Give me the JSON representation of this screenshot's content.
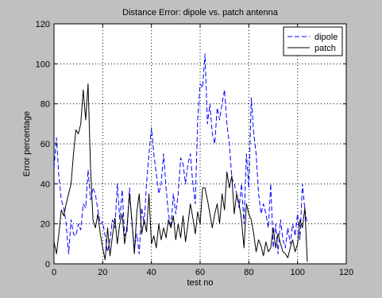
{
  "chart_data": {
    "type": "line",
    "title": "Distance Error: dipole vs. patch antenna",
    "xlabel": "test no",
    "ylabel": "Error percentage",
    "xlim": [
      0,
      120
    ],
    "ylim": [
      0,
      120
    ],
    "xticks": [
      0,
      20,
      40,
      60,
      80,
      100,
      120
    ],
    "yticks": [
      0,
      20,
      40,
      60,
      80,
      100,
      120
    ],
    "grid": true,
    "legend_position": "top-right",
    "series": [
      {
        "name": "dipole",
        "color": "#0000ff",
        "dash": "dashed",
        "values": [
          [
            0,
            48
          ],
          [
            1,
            63
          ],
          [
            2,
            44
          ],
          [
            3,
            32
          ],
          [
            4,
            28
          ],
          [
            5,
            20
          ],
          [
            6,
            5
          ],
          [
            7,
            22
          ],
          [
            8,
            15
          ],
          [
            9,
            14
          ],
          [
            10,
            20
          ],
          [
            11,
            17
          ],
          [
            12,
            30
          ],
          [
            13,
            28
          ],
          [
            14,
            47
          ],
          [
            15,
            32
          ],
          [
            16,
            38
          ],
          [
            17,
            35
          ],
          [
            18,
            27
          ],
          [
            19,
            20
          ],
          [
            20,
            21
          ],
          [
            21,
            14
          ],
          [
            22,
            6
          ],
          [
            23,
            12
          ],
          [
            24,
            22
          ],
          [
            25,
            18
          ],
          [
            26,
            40
          ],
          [
            27,
            22
          ],
          [
            28,
            37
          ],
          [
            29,
            14
          ],
          [
            30,
            16
          ],
          [
            31,
            38
          ],
          [
            32,
            20
          ],
          [
            33,
            8
          ],
          [
            34,
            15
          ],
          [
            35,
            5
          ],
          [
            36,
            28
          ],
          [
            37,
            20
          ],
          [
            38,
            40
          ],
          [
            39,
            55
          ],
          [
            40,
            68
          ],
          [
            41,
            55
          ],
          [
            42,
            45
          ],
          [
            43,
            35
          ],
          [
            44,
            40
          ],
          [
            45,
            55
          ],
          [
            46,
            38
          ],
          [
            47,
            25
          ],
          [
            48,
            18
          ],
          [
            49,
            35
          ],
          [
            50,
            25
          ],
          [
            51,
            35
          ],
          [
            52,
            53
          ],
          [
            53,
            50
          ],
          [
            54,
            40
          ],
          [
            55,
            50
          ],
          [
            56,
            55
          ],
          [
            57,
            40
          ],
          [
            58,
            30
          ],
          [
            59,
            72
          ],
          [
            60,
            90
          ],
          [
            61,
            88
          ],
          [
            62,
            105
          ],
          [
            63,
            70
          ],
          [
            64,
            80
          ],
          [
            65,
            65
          ],
          [
            66,
            60
          ],
          [
            67,
            78
          ],
          [
            68,
            72
          ],
          [
            69,
            80
          ],
          [
            70,
            87
          ],
          [
            71,
            70
          ],
          [
            72,
            60
          ],
          [
            73,
            43
          ],
          [
            74,
            40
          ],
          [
            75,
            35
          ],
          [
            76,
            28
          ],
          [
            77,
            40
          ],
          [
            78,
            20
          ],
          [
            79,
            55
          ],
          [
            80,
            38
          ],
          [
            81,
            83
          ],
          [
            82,
            65
          ],
          [
            83,
            55
          ],
          [
            84,
            35
          ],
          [
            85,
            25
          ],
          [
            86,
            30
          ],
          [
            87,
            25
          ],
          [
            88,
            18
          ],
          [
            89,
            40
          ],
          [
            90,
            8
          ],
          [
            91,
            20
          ],
          [
            92,
            5
          ],
          [
            93,
            22
          ],
          [
            94,
            12
          ],
          [
            95,
            8
          ],
          [
            96,
            18
          ],
          [
            97,
            10
          ],
          [
            98,
            20
          ],
          [
            99,
            14
          ],
          [
            100,
            25
          ],
          [
            101,
            12
          ],
          [
            102,
            40
          ],
          [
            103,
            27
          ],
          [
            104,
            20
          ]
        ]
      },
      {
        "name": "patch",
        "color": "#000000",
        "dash": "solid",
        "values": [
          [
            0,
            11
          ],
          [
            1,
            5
          ],
          [
            2,
            15
          ],
          [
            3,
            27
          ],
          [
            4,
            24
          ],
          [
            5,
            30
          ],
          [
            6,
            35
          ],
          [
            7,
            40
          ],
          [
            8,
            55
          ],
          [
            9,
            67
          ],
          [
            10,
            65
          ],
          [
            11,
            70
          ],
          [
            12,
            87
          ],
          [
            13,
            72
          ],
          [
            14,
            90
          ],
          [
            15,
            48
          ],
          [
            16,
            22
          ],
          [
            17,
            18
          ],
          [
            18,
            25
          ],
          [
            19,
            15
          ],
          [
            20,
            8
          ],
          [
            21,
            2
          ],
          [
            22,
            18
          ],
          [
            23,
            4
          ],
          [
            24,
            14
          ],
          [
            25,
            23
          ],
          [
            26,
            10
          ],
          [
            27,
            20
          ],
          [
            28,
            25
          ],
          [
            29,
            10
          ],
          [
            30,
            19
          ],
          [
            31,
            35
          ],
          [
            32,
            22
          ],
          [
            33,
            5
          ],
          [
            34,
            26
          ],
          [
            35,
            35
          ],
          [
            36,
            15
          ],
          [
            37,
            22
          ],
          [
            38,
            16
          ],
          [
            39,
            35
          ],
          [
            40,
            10
          ],
          [
            41,
            14
          ],
          [
            42,
            8
          ],
          [
            43,
            20
          ],
          [
            44,
            12
          ],
          [
            45,
            18
          ],
          [
            46,
            13
          ],
          [
            47,
            22
          ],
          [
            48,
            18
          ],
          [
            49,
            24
          ],
          [
            50,
            12
          ],
          [
            51,
            20
          ],
          [
            52,
            13
          ],
          [
            53,
            24
          ],
          [
            54,
            11
          ],
          [
            55,
            20
          ],
          [
            56,
            30
          ],
          [
            57,
            23
          ],
          [
            58,
            15
          ],
          [
            59,
            26
          ],
          [
            60,
            20
          ],
          [
            61,
            38
          ],
          [
            62,
            38
          ],
          [
            63,
            32
          ],
          [
            64,
            25
          ],
          [
            65,
            18
          ],
          [
            66,
            25
          ],
          [
            67,
            30
          ],
          [
            68,
            20
          ],
          [
            69,
            35
          ],
          [
            70,
            27
          ],
          [
            71,
            46
          ],
          [
            72,
            38
          ],
          [
            73,
            44
          ],
          [
            74,
            25
          ],
          [
            75,
            35
          ],
          [
            76,
            30
          ],
          [
            77,
            22
          ],
          [
            78,
            8
          ],
          [
            79,
            30
          ],
          [
            80,
            25
          ],
          [
            81,
            22
          ],
          [
            82,
            15
          ],
          [
            83,
            6
          ],
          [
            84,
            12
          ],
          [
            85,
            9
          ],
          [
            86,
            4
          ],
          [
            87,
            11
          ],
          [
            88,
            6
          ],
          [
            89,
            8
          ],
          [
            90,
            18
          ],
          [
            91,
            8
          ],
          [
            92,
            15
          ],
          [
            93,
            10
          ],
          [
            94,
            6
          ],
          [
            95,
            5
          ],
          [
            96,
            3
          ],
          [
            97,
            8
          ],
          [
            98,
            12
          ],
          [
            99,
            6
          ],
          [
            100,
            10
          ],
          [
            101,
            22
          ],
          [
            102,
            18
          ],
          [
            103,
            28
          ],
          [
            104,
            1
          ]
        ]
      }
    ]
  }
}
